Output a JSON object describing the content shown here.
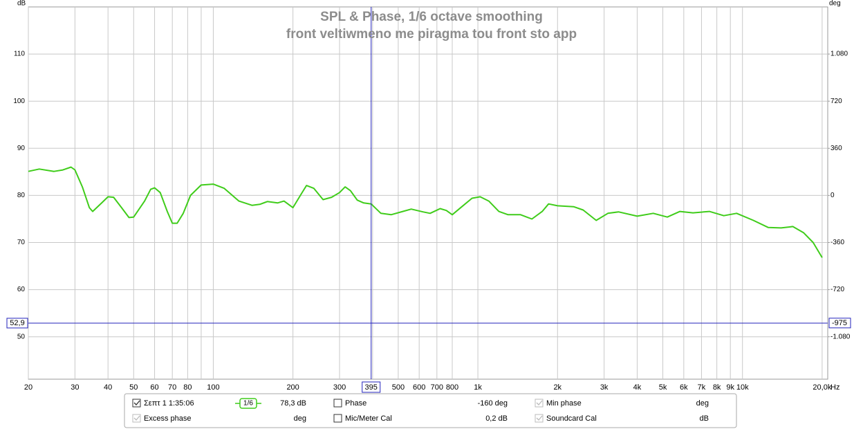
{
  "chart_data": {
    "type": "line",
    "title": "SPL & Phase, 1/6 octave smoothing",
    "subtitle": "front veltiwmeno me piragma tou front sto app",
    "y_unit": "dB",
    "y2_unit": "deg",
    "x_unit": "Hz",
    "xscale": "log",
    "grid": true,
    "xlim": [
      20,
      21000
    ],
    "ylim": [
      41,
      120
    ],
    "y2lim": [
      -1404,
      1440
    ],
    "xticks": [
      20,
      30,
      40,
      50,
      60,
      70,
      80,
      100,
      200,
      300,
      500,
      600,
      700,
      800,
      {
        "value": 1000,
        "label": "1k"
      },
      {
        "value": 2000,
        "label": "2k"
      },
      {
        "value": 3000,
        "label": "3k"
      },
      {
        "value": 4000,
        "label": "4k"
      },
      {
        "value": 5000,
        "label": "5k"
      },
      {
        "value": 6000,
        "label": "6k"
      },
      {
        "value": 7000,
        "label": "7k"
      },
      {
        "value": 8000,
        "label": "8k"
      },
      {
        "value": 9000,
        "label": "9k"
      },
      {
        "value": 10000,
        "label": "10k"
      },
      {
        "value": 20000,
        "label": "20,0k"
      }
    ],
    "xminor": [
      90,
      400
    ],
    "yticks": [
      50,
      60,
      70,
      80,
      90,
      100,
      110
    ],
    "y2ticks": [
      {
        "value": -1080,
        "label": "-1.080"
      },
      -720,
      -360,
      0,
      360,
      720,
      {
        "value": 1080,
        "label": "1.080"
      }
    ],
    "cursor": {
      "x": {
        "value": 395,
        "label": "395"
      },
      "y": {
        "value": 52.9,
        "label": "52,9"
      },
      "y2": {
        "value": -975,
        "label": "-975"
      }
    },
    "series": [
      {
        "name": "Σεπτ 1 1:35:06",
        "color": "#3fcc1a",
        "x": [
          20,
          22,
          25,
          27,
          29,
          30,
          32,
          34,
          35,
          38,
          40,
          42,
          45,
          48,
          50,
          55,
          58,
          60,
          63,
          67,
          70,
          73,
          77,
          82,
          90,
          100,
          110,
          125,
          140,
          150,
          160,
          175,
          185,
          200,
          215,
          225,
          240,
          260,
          280,
          300,
          315,
          330,
          350,
          370,
          395,
          430,
          470,
          520,
          560,
          620,
          660,
          720,
          760,
          800,
          870,
          950,
          1020,
          1100,
          1200,
          1300,
          1450,
          1600,
          1750,
          1850,
          2000,
          2300,
          2500,
          2800,
          3100,
          3400,
          4000,
          4600,
          5200,
          5800,
          6500,
          7500,
          8500,
          9500,
          11000,
          12500,
          14000,
          15500,
          17000,
          18500,
          20000
        ],
        "values": [
          85.1,
          85.6,
          85.1,
          85.4,
          86.0,
          85.4,
          81.8,
          77.4,
          76.6,
          78.5,
          79.7,
          79.6,
          77.4,
          75.3,
          75.4,
          78.8,
          81.3,
          81.6,
          80.6,
          76.6,
          74.1,
          74.1,
          76.2,
          80.0,
          82.2,
          82.4,
          81.5,
          78.8,
          77.9,
          78.1,
          78.7,
          78.4,
          78.8,
          77.4,
          80.3,
          82.1,
          81.5,
          79.1,
          79.6,
          80.6,
          81.8,
          81.0,
          79.0,
          78.4,
          78.2,
          76.2,
          75.9,
          76.6,
          77.1,
          76.5,
          76.2,
          77.2,
          76.8,
          75.9,
          77.6,
          79.4,
          79.7,
          78.8,
          76.6,
          75.9,
          75.9,
          75.0,
          76.6,
          78.2,
          77.8,
          77.6,
          76.9,
          74.7,
          76.2,
          76.5,
          75.6,
          76.2,
          75.4,
          76.6,
          76.3,
          76.6,
          75.7,
          76.2,
          74.7,
          73.2,
          73.1,
          73.4,
          72.1,
          70.0,
          66.8
        ]
      }
    ]
  },
  "legend": {
    "smoothing": "1/6",
    "readout": "78,3 dB"
  },
  "controls": [
    {
      "label": "Phase",
      "checked": false,
      "enabled": true,
      "color": "#3fcc1a",
      "readout": "-160 deg"
    },
    {
      "label": "Min phase",
      "checked": true,
      "enabled": false,
      "color": "#aaaaaa",
      "readout": "deg"
    },
    {
      "label": "Excess phase",
      "checked": true,
      "enabled": false,
      "color": "#aaaaaa",
      "readout": "deg"
    },
    {
      "label": "Mic/Meter Cal",
      "checked": false,
      "enabled": true,
      "color": "#000000",
      "readout": "0,2 dB"
    },
    {
      "label": "Soundcard Cal",
      "checked": true,
      "enabled": false,
      "color": "#aaaaaa",
      "readout": "dB"
    }
  ]
}
